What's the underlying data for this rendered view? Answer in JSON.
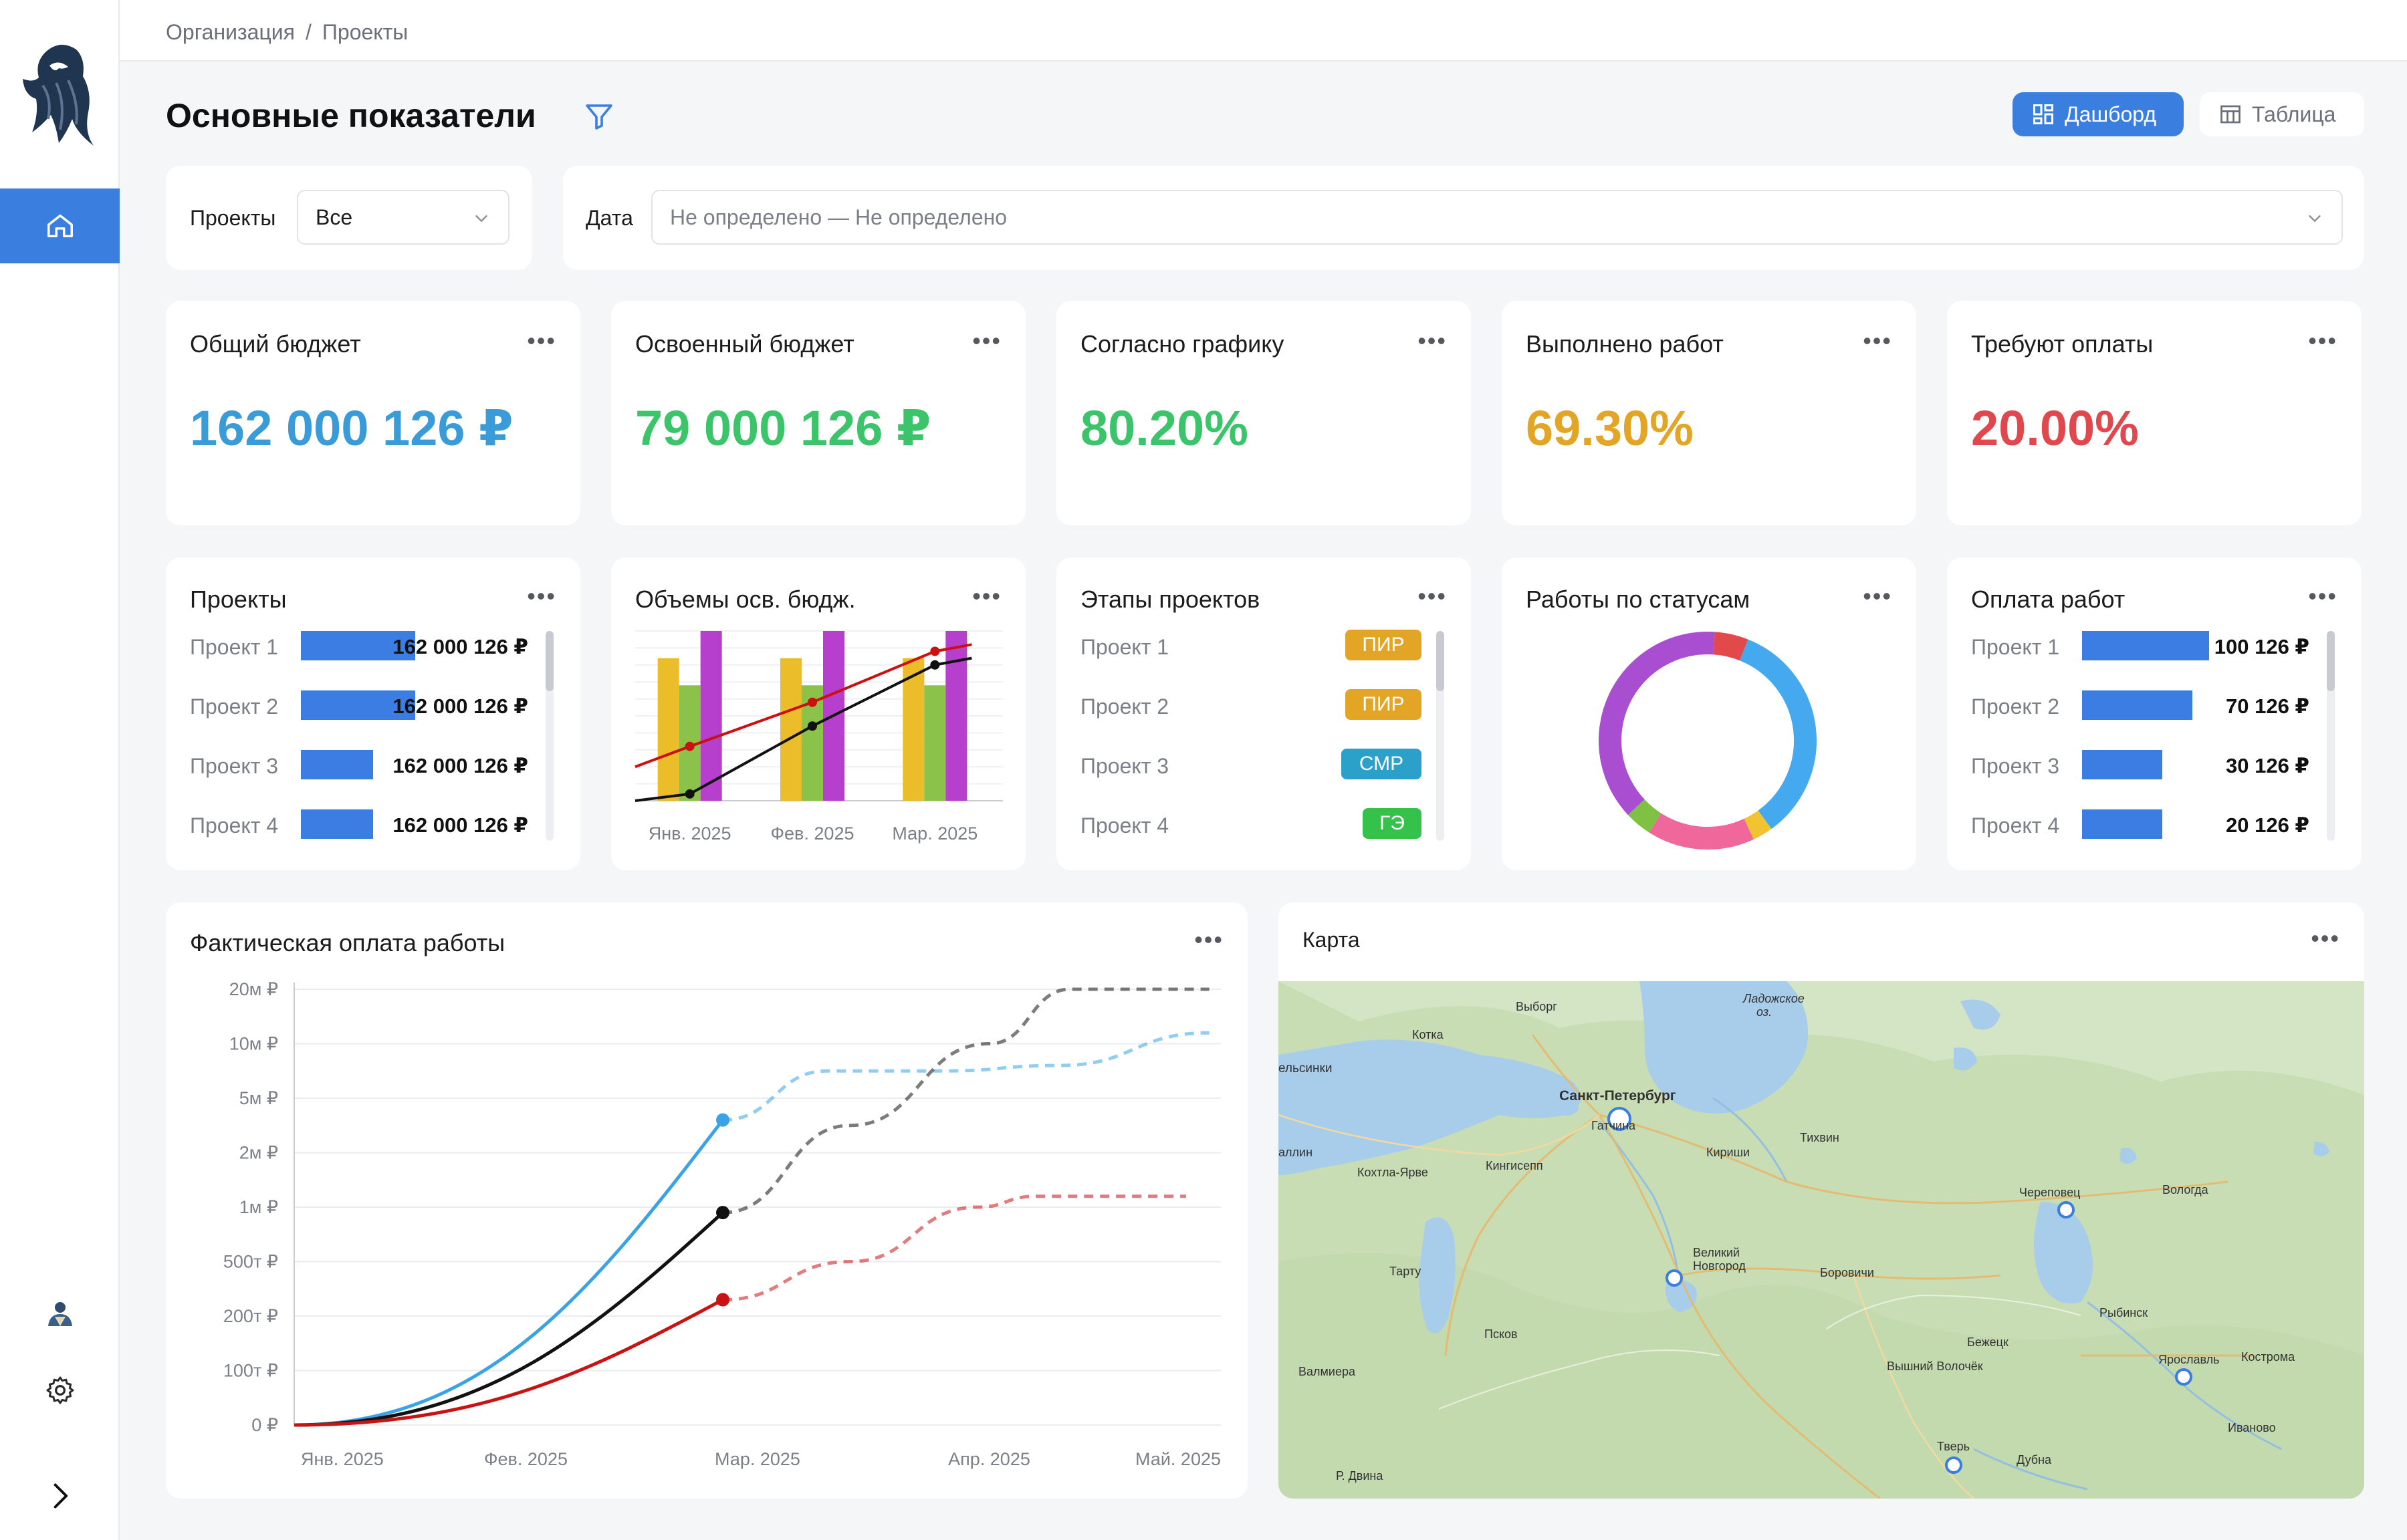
{
  "breadcrumb": [
    "Организация",
    "Проекты"
  ],
  "page_title": "Основные показатели",
  "view_switch": {
    "dashboard": "Дашборд",
    "table": "Таблица"
  },
  "filters": {
    "projects_label": "Проекты",
    "projects_value": "Все",
    "date_label": "Дата",
    "date_value": "Не определено — Не определено"
  },
  "kpis": [
    {
      "title": "Общий бюджет",
      "value": "162 000 126 ₽",
      "color": "#3a9bd9"
    },
    {
      "title": "Освоенный бюджет",
      "value": "79 000 126 ₽",
      "color": "#3cc46b"
    },
    {
      "title": "Согласно графику",
      "value": "80.20%",
      "color": "#3cc46b"
    },
    {
      "title": "Выполнено работ",
      "value": "69.30%",
      "color": "#e3a526"
    },
    {
      "title": "Требуют оплаты",
      "value": "20.00%",
      "color": "#e0484d"
    }
  ],
  "projects_card": {
    "title": "Проекты",
    "rows": [
      {
        "label": "Проект 1",
        "value": "162 000 126 ₽",
        "fill": 0.9
      },
      {
        "label": "Проект 2",
        "value": "162 000 126 ₽",
        "fill": 0.9
      },
      {
        "label": "Проект 3",
        "value": "162 000 126 ₽",
        "fill": 0.57
      },
      {
        "label": "Проект 4",
        "value": "162 000 126 ₽",
        "fill": 0.57
      }
    ]
  },
  "budget_volume_card": {
    "title": "Объемы осв. бюдж."
  },
  "stages_card": {
    "title": "Этапы проектов",
    "rows": [
      {
        "label": "Проект 1",
        "badge": "ПИР",
        "color": "#e3a526"
      },
      {
        "label": "Проект 2",
        "badge": "ПИР",
        "color": "#e3a526"
      },
      {
        "label": "Проект 3",
        "badge": "СМР",
        "color": "#2ba0c9"
      },
      {
        "label": "Проект 4",
        "badge": "ГЭ",
        "color": "#35c24a"
      }
    ]
  },
  "status_card": {
    "title": "Работы по статусам"
  },
  "payment_card": {
    "title": "Оплата работ",
    "rows": [
      {
        "label": "Проект 1",
        "value": "100 126 ₽",
        "fill": 1.0
      },
      {
        "label": "Проект 2",
        "value": "70 126 ₽",
        "fill": 0.87
      },
      {
        "label": "Проект 3",
        "value": "30 126 ₽",
        "fill": 0.63
      },
      {
        "label": "Проект 4",
        "value": "20 126 ₽",
        "fill": 0.63
      }
    ]
  },
  "actual_payment_card": {
    "title": "Фактическая оплата работы"
  },
  "map_card": {
    "title": "Карта",
    "places": [
      {
        "name": "Выборг",
        "marker": false
      },
      {
        "name": "Ладожское",
        "marker": false
      },
      {
        "name": "оз.",
        "marker": false
      },
      {
        "name": "Котка",
        "marker": false
      },
      {
        "name": "ельсинки",
        "marker": false
      },
      {
        "name": "Санкт-Петербург",
        "marker": true
      },
      {
        "name": "Гатчина",
        "marker": false
      },
      {
        "name": "Кириши",
        "marker": false
      },
      {
        "name": "Тихвин",
        "marker": false
      },
      {
        "name": "аллин",
        "marker": false
      },
      {
        "name": "Кохтла-Ярве",
        "marker": false
      },
      {
        "name": "Кингисепп",
        "marker": false
      },
      {
        "name": "Череповец",
        "marker": true
      },
      {
        "name": "Вологда",
        "marker": false
      },
      {
        "name": "Великий",
        "marker": false
      },
      {
        "name": "Новгород",
        "marker": true
      },
      {
        "name": "Тарту",
        "marker": false
      },
      {
        "name": "Боровичи",
        "marker": false
      },
      {
        "name": "Рыбинск",
        "marker": false
      },
      {
        "name": "Псков",
        "marker": false
      },
      {
        "name": "Бежецк",
        "marker": false
      },
      {
        "name": "Вышний Волочёк",
        "marker": false
      },
      {
        "name": "Ярославль",
        "marker": true
      },
      {
        "name": "Кострома",
        "marker": false
      },
      {
        "name": "Валмиера",
        "marker": false
      },
      {
        "name": "Тверь",
        "marker": true
      },
      {
        "name": "Дубна",
        "marker": false
      },
      {
        "name": "Иваново",
        "marker": false
      },
      {
        "name": "Р. Двина",
        "marker": false
      }
    ]
  },
  "chart_data": [
    {
      "type": "bar",
      "title": "Объемы осв. бюдж.",
      "categories": [
        "Янв. 2025",
        "Фев. 2025",
        "Мар. 2025"
      ],
      "series": [
        {
          "values": [
            42,
            42,
            42
          ],
          "color": "#ecbd2a"
        },
        {
          "values": [
            34,
            34,
            34
          ],
          "color": "#8bc34a"
        },
        {
          "values": [
            50,
            50,
            50
          ],
          "color": "#b63fce"
        }
      ],
      "lines": [
        {
          "color": "#cc1010",
          "points": [
            [
              0,
              16
            ],
            [
              1,
              29
            ],
            [
              2,
              44
            ],
            [
              2.3,
              46
            ]
          ]
        },
        {
          "color": "#111111",
          "points": [
            [
              0,
              2
            ],
            [
              1,
              22
            ],
            [
              2,
              40
            ],
            [
              2.3,
              42
            ]
          ]
        }
      ],
      "ylim": [
        0,
        50
      ],
      "grid": true
    },
    {
      "type": "pie",
      "title": "Работы по статусам",
      "slices": [
        {
          "value": 34,
          "color": "#45a9f0"
        },
        {
          "value": 3,
          "color": "#f2c330"
        },
        {
          "value": 16,
          "color": "#f0679b"
        },
        {
          "value": 4,
          "color": "#7fc243"
        },
        {
          "value": 38,
          "color": "#a94ed1"
        },
        {
          "value": 5,
          "color": "#e2494a"
        }
      ]
    },
    {
      "type": "line",
      "title": "Фактическая оплата работы",
      "x": [
        "Янв. 2025",
        "Фев. 2025",
        "Мар. 2025",
        "Апр. 2025",
        "Май. 2025"
      ],
      "y_ticks": [
        "0 ₽",
        "100т ₽",
        "200т ₽",
        "500т ₽",
        "1м ₽",
        "2м ₽",
        "5м ₽",
        "10м ₽",
        "20м ₽"
      ],
      "scale": "log",
      "grid": true,
      "series": [
        {
          "color": "#3aa3e6",
          "actual": [
            [
              0,
              0
            ],
            [
              0.6,
              1.0
            ],
            [
              1.2,
              3.0
            ],
            [
              1.85,
              5.6
            ]
          ],
          "forecast": [
            [
              1.85,
              5.6
            ],
            [
              2.3,
              6.5
            ],
            [
              2.8,
              6.5
            ],
            [
              3.3,
              6.6
            ],
            [
              3.95,
              7.2
            ]
          ]
        },
        {
          "color": "#111111",
          "actual": [
            [
              0,
              0
            ],
            [
              0.6,
              0.6
            ],
            [
              1.2,
              2.0
            ],
            [
              1.85,
              3.9
            ]
          ],
          "forecast": [
            [
              1.85,
              3.9
            ],
            [
              2.4,
              5.5
            ],
            [
              3.0,
              7.0
            ],
            [
              3.35,
              8.0
            ],
            [
              3.95,
              8.0
            ]
          ]
        },
        {
          "color": "#c91212",
          "actual": [
            [
              0,
              0
            ],
            [
              0.6,
              0.4
            ],
            [
              1.2,
              1.2
            ],
            [
              1.85,
              2.3
            ]
          ],
          "forecast": [
            [
              1.85,
              2.3
            ],
            [
              2.4,
              3.0
            ],
            [
              2.95,
              4.0
            ],
            [
              3.2,
              4.2
            ],
            [
              3.85,
              4.2
            ]
          ]
        }
      ]
    }
  ]
}
